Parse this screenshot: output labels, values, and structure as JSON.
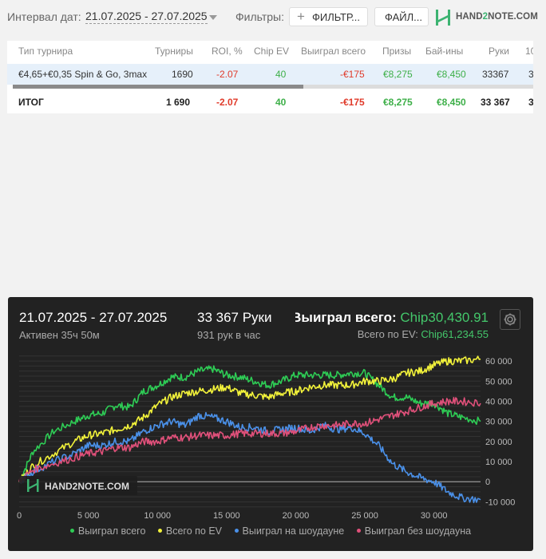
{
  "toolbar": {
    "interval_label": "Интервал дат:",
    "interval_value": "21.07.2025 - 27.07.2025",
    "filters_label": "Фильтры:",
    "filter_button": "ФИЛЬТР...",
    "file_button": "ФАЙЛ...",
    "logo_text_a": "HAND",
    "logo_text_b": "2",
    "logo_text_c": "NOTE.COM"
  },
  "table": {
    "headers": [
      "Тип турнира",
      "Турниры",
      "ROI, %",
      "Chip EV",
      "Выиграл всего",
      "Призы",
      "Бай-ины",
      "Руки",
      "10"
    ],
    "row": [
      "€4,65+€0,35 Spin & Go, 3max",
      "1690",
      "-2.07",
      "40",
      "-€175",
      "€8,275",
      "€8,450",
      "33367",
      "3"
    ],
    "total": [
      "ИТОГ",
      "1 690",
      "-2.07",
      "40",
      "-€175",
      "€8,275",
      "€8,450",
      "33 367",
      "3"
    ]
  },
  "panel": {
    "date": "21.07.2025 - 27.07.2025",
    "active": "Активен 35ч 50м",
    "hands": "33 367 Руки",
    "rate": "931 рук в час",
    "won_label": "Выиграл всего: ",
    "won_value": "Chip30,430.91",
    "ev_label": "Всего по EV: ",
    "ev_value": "Chip61,234.55",
    "watermark": "HAND2NOTE.COM"
  },
  "colors": {
    "won": "#2ecc55",
    "ev": "#f2f23a",
    "showdown": "#4a90e8",
    "nonshowdown": "#e0507a"
  },
  "chart_data": {
    "type": "line",
    "xlabel": "",
    "ylabel": "",
    "xlim": [
      0,
      33367
    ],
    "ylim": [
      -13000,
      64000
    ],
    "x_ticks": [
      0,
      5000,
      10000,
      15000,
      20000,
      25000,
      30000
    ],
    "x_tick_labels": [
      "0",
      "5 000",
      "10 000",
      "15 000",
      "20 000",
      "25 000",
      "30 000"
    ],
    "y_ticks": [
      60000,
      50000,
      40000,
      30000,
      20000,
      10000,
      0,
      -10000
    ],
    "y_tick_labels": [
      "60 000",
      "50 000",
      "40 000",
      "30 000",
      "20 000",
      "10 000",
      "0",
      "-10 000"
    ],
    "grid": true,
    "legend": "bottom",
    "series": [
      {
        "name": "Выиграл всего",
        "color": "#2ecc55",
        "x": [
          0,
          1000,
          2500,
          4000,
          5000,
          6000,
          7000,
          8000,
          9000,
          10000,
          11000,
          12000,
          13000,
          14000,
          15000,
          16000,
          17000,
          18000,
          19000,
          20000,
          21000,
          22000,
          23000,
          24000,
          25000,
          26000,
          27000,
          28000,
          29000,
          30000,
          31000,
          32000,
          33367
        ],
        "y": [
          0,
          15000,
          25000,
          30000,
          33000,
          34000,
          38000,
          37000,
          45000,
          48000,
          52000,
          52000,
          55000,
          56000,
          53000,
          52000,
          50000,
          48000,
          50000,
          53000,
          53000,
          53000,
          53000,
          54000,
          54000,
          48000,
          42000,
          42000,
          39000,
          39000,
          34000,
          32000,
          30000
        ]
      },
      {
        "name": "Всего по EV",
        "color": "#f2f23a",
        "x": [
          0,
          1000,
          2500,
          4000,
          5000,
          6000,
          7000,
          8000,
          9000,
          10000,
          11000,
          12000,
          13000,
          14000,
          15000,
          16000,
          17000,
          18000,
          19000,
          20000,
          21000,
          22000,
          23000,
          24000,
          25000,
          26000,
          27000,
          28000,
          29000,
          30000,
          31000,
          32000,
          33367
        ],
        "y": [
          0,
          8000,
          14000,
          20000,
          23000,
          24000,
          26000,
          28000,
          32000,
          38000,
          42000,
          44000,
          45000,
          46000,
          47000,
          44000,
          43000,
          42000,
          44000,
          45000,
          47000,
          48000,
          48000,
          48000,
          50000,
          50000,
          51000,
          54000,
          55000,
          58000,
          60000,
          60000,
          61000
        ]
      },
      {
        "name": "Выиграл на шоудауне",
        "color": "#4a90e8",
        "x": [
          0,
          1000,
          2500,
          4000,
          5000,
          6000,
          7000,
          8000,
          9000,
          10000,
          11000,
          12000,
          13000,
          14000,
          15000,
          16000,
          17000,
          18000,
          19000,
          20000,
          21000,
          22000,
          23000,
          24000,
          25000,
          26000,
          27000,
          28000,
          29000,
          30000,
          31000,
          32000,
          33367
        ],
        "y": [
          0,
          5000,
          10000,
          14000,
          18000,
          18000,
          20000,
          20000,
          25000,
          28000,
          30000,
          28000,
          33000,
          32000,
          30000,
          27000,
          27000,
          25000,
          26000,
          27000,
          25000,
          28000,
          26000,
          27000,
          24000,
          18000,
          9000,
          5000,
          2000,
          0,
          -5000,
          -8000,
          -9000
        ]
      },
      {
        "name": "Выиграл без шоудауна",
        "color": "#e0507a",
        "x": [
          0,
          1000,
          2500,
          4000,
          5000,
          6000,
          7000,
          8000,
          9000,
          10000,
          11000,
          12000,
          13000,
          14000,
          15000,
          16000,
          17000,
          18000,
          19000,
          20000,
          21000,
          22000,
          23000,
          24000,
          25000,
          26000,
          27000,
          28000,
          29000,
          30000,
          31000,
          32000,
          33367
        ],
        "y": [
          0,
          6000,
          9000,
          12000,
          14000,
          15000,
          17000,
          17000,
          20000,
          20000,
          22000,
          22000,
          23000,
          23000,
          23000,
          24000,
          24000,
          24000,
          24000,
          25000,
          27000,
          28000,
          28000,
          29000,
          29000,
          31000,
          33000,
          35000,
          37000,
          39000,
          40000,
          40000,
          39000
        ]
      }
    ]
  }
}
